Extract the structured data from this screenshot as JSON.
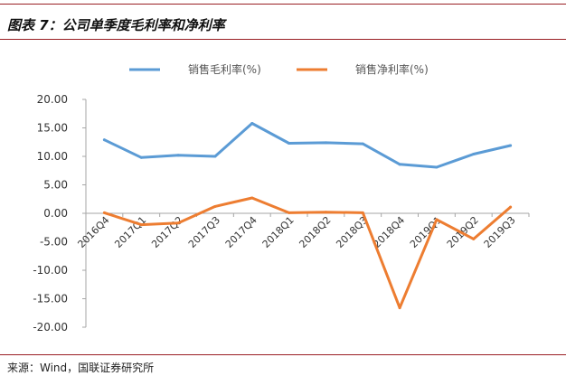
{
  "figure": {
    "title": "图表 7：公司单季度毛利率和净利率",
    "source": "来源：Wind，国联证券研究所"
  },
  "chart_data": {
    "type": "line",
    "title": "",
    "xlabel": "",
    "ylabel": "",
    "categories": [
      "2016Q4",
      "2017Q1",
      "2017Q2",
      "2017Q3",
      "2017Q4",
      "2018Q1",
      "2018Q2",
      "2018Q3",
      "2018Q4",
      "2019Q1",
      "2019Q2",
      "2019Q3"
    ],
    "series": [
      {
        "name": "销售毛利率(%)",
        "color": "#5b9bd5",
        "values": [
          12.9,
          9.8,
          10.2,
          10.0,
          15.8,
          12.3,
          12.4,
          12.2,
          8.6,
          8.1,
          10.4,
          11.9
        ]
      },
      {
        "name": "销售净利率(%)",
        "color": "#ed7d31",
        "values": [
          0.1,
          -2.0,
          -1.7,
          1.2,
          2.7,
          0.1,
          0.2,
          0.1,
          -16.6,
          -1.1,
          -4.5,
          1.1
        ]
      }
    ],
    "ylim": [
      -20,
      20
    ],
    "yticks": [
      "20.00",
      "15.00",
      "10.00",
      "5.00",
      "0.00",
      "-5.00",
      "-10.00",
      "-15.00",
      "-20.00"
    ],
    "ytick_values": [
      20,
      15,
      10,
      5,
      0,
      -5,
      -10,
      -15,
      -20
    ],
    "grid": false,
    "legend_position": "top-center"
  }
}
